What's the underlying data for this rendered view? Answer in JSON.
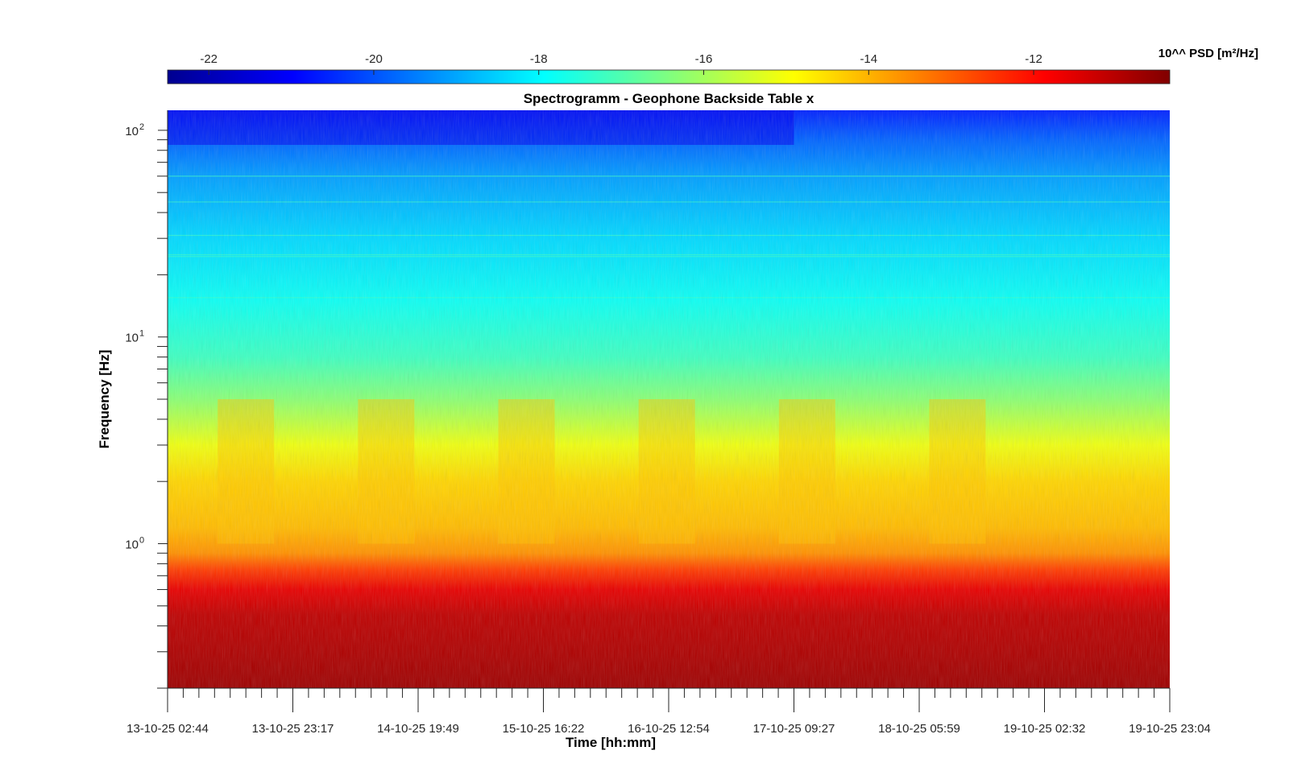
{
  "chart_data": {
    "type": "heatmap",
    "title": "Spectrogramm - Geophone Backside Table x",
    "xlabel": "Time [hh:mm]",
    "ylabel": "Frequency [Hz]",
    "x_tick_labels": [
      "13-10-25 02:44",
      "13-10-25 23:17",
      "14-10-25 19:49",
      "15-10-25 16:22",
      "16-10-25 12:54",
      "17-10-25 09:27",
      "18-10-25 05:59",
      "19-10-25 02:32",
      "19-10-25 23:04"
    ],
    "y_scale": "log",
    "y_ticks": [
      {
        "base": "10",
        "exp": "0"
      },
      {
        "base": "10",
        "exp": "1"
      },
      {
        "base": "10",
        "exp": "2"
      }
    ],
    "ylim": [
      0.2,
      125
    ],
    "colorbar": {
      "label": "10^^ PSD [m²/Hz]",
      "ticks": [
        "-22",
        "-20",
        "-18",
        "-16",
        "-14",
        "-12"
      ],
      "range": [
        -22.5,
        -10.35
      ],
      "colormap": "jet"
    },
    "bands": [
      {
        "freq_hz": 0.2,
        "log_psd": -10.7
      },
      {
        "freq_hz": 0.3,
        "log_psd": -10.9
      },
      {
        "freq_hz": 0.45,
        "log_psd": -11.1
      },
      {
        "freq_hz": 0.6,
        "log_psd": -11.6
      },
      {
        "freq_hz": 0.75,
        "log_psd": -12.6
      },
      {
        "freq_hz": 0.9,
        "log_psd": -13.6
      },
      {
        "freq_hz": 1.2,
        "log_psd": -14.1
      },
      {
        "freq_hz": 2.0,
        "log_psd": -14.4
      },
      {
        "freq_hz": 3.0,
        "log_psd": -15.1
      },
      {
        "freq_hz": 5.0,
        "log_psd": -16.3
      },
      {
        "freq_hz": 8.0,
        "log_psd": -17.2
      },
      {
        "freq_hz": 15.0,
        "log_psd": -17.8
      },
      {
        "freq_hz": 30.0,
        "log_psd": -18.4
      },
      {
        "freq_hz": 60.0,
        "log_psd": -19.1
      },
      {
        "freq_hz": 90.0,
        "log_psd": -19.8
      },
      {
        "freq_hz": 125.0,
        "log_psd": -20.6
      }
    ]
  }
}
